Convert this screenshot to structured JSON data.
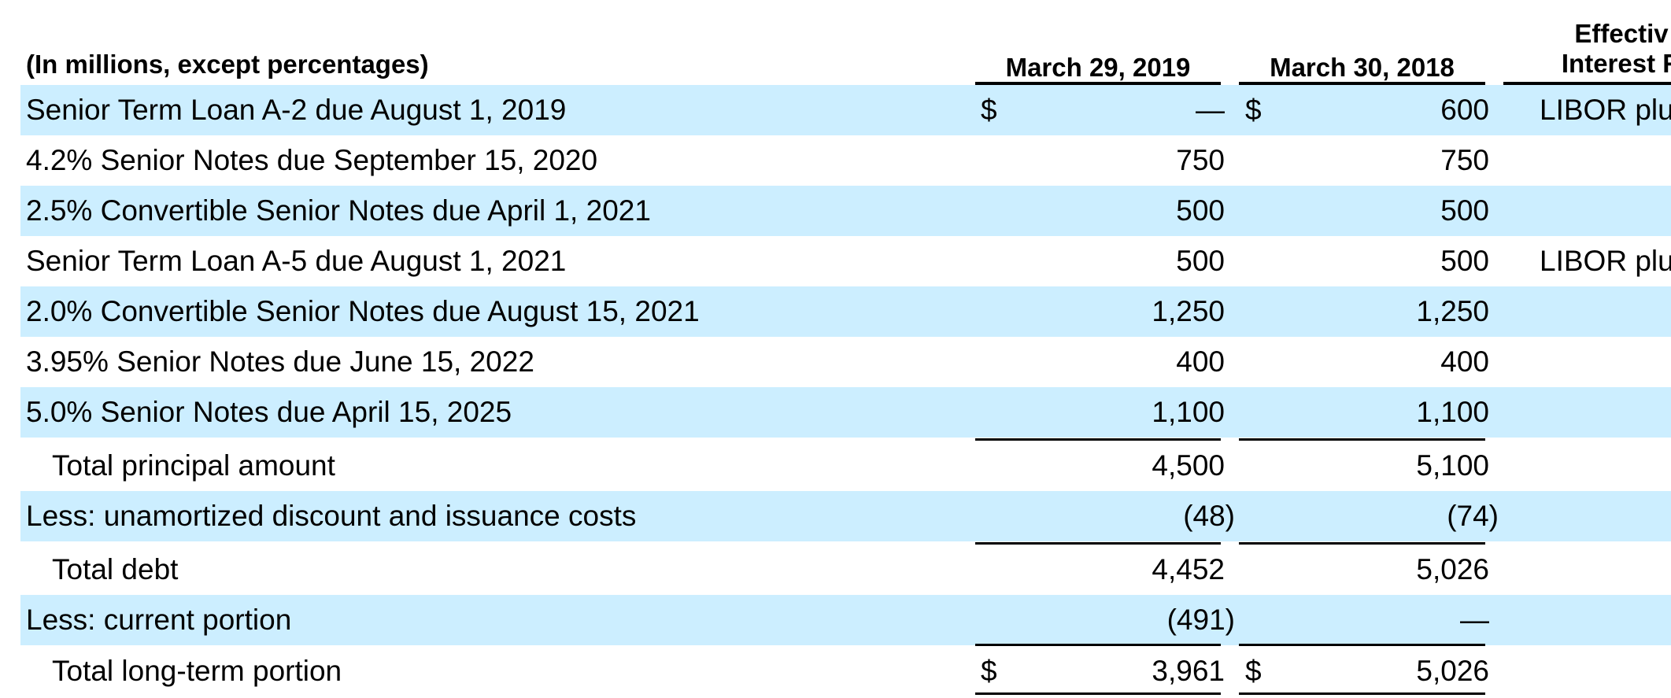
{
  "header": {
    "label": "(In millions, except percentages)",
    "col1": "March 29, 2019",
    "col2": "March 30, 2018",
    "col3_line1": "Effectiv",
    "col3_line2": "Interest R"
  },
  "rows": [
    {
      "label": "Senior Term Loan A-2 due August 1, 2019",
      "dollar1": "$",
      "v1": "—",
      "dollar2": "$",
      "v2": "600",
      "rate": "LIBOR plu"
    },
    {
      "label": "4.2% Senior Notes due September 15, 2020",
      "v1": "750",
      "v2": "750",
      "rate": ""
    },
    {
      "label": "2.5% Convertible Senior Notes due April 1, 2021",
      "v1": "500",
      "v2": "500",
      "rate": ""
    },
    {
      "label": "Senior Term Loan A-5 due August 1, 2021",
      "v1": "500",
      "v2": "500",
      "rate": "LIBOR plu"
    },
    {
      "label": "2.0% Convertible Senior Notes due August 15, 2021",
      "v1": "1,250",
      "v2": "1,250",
      "rate": ""
    },
    {
      "label": "3.95% Senior Notes due June 15, 2022",
      "v1": "400",
      "v2": "400",
      "rate": ""
    },
    {
      "label": "5.0% Senior Notes due April 15, 2025",
      "v1": "1,100",
      "v2": "1,100",
      "rate": ""
    },
    {
      "label": "Total principal amount",
      "v1": "4,500",
      "v2": "5,100"
    },
    {
      "label": "Less: unamortized discount and issuance costs",
      "v1": "(48)",
      "v2": "(74)"
    },
    {
      "label": "Total debt",
      "v1": "4,452",
      "v2": "5,026"
    },
    {
      "label": "Less: current portion",
      "v1": "(491)",
      "v2": "—"
    },
    {
      "label": "Total long-term portion",
      "dollar1": "$",
      "v1": "3,961",
      "dollar2": "$",
      "v2": "5,026"
    }
  ],
  "colors": {
    "row_shade": "#cceeff"
  }
}
